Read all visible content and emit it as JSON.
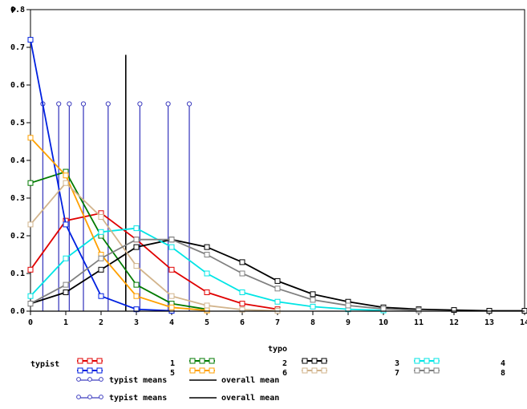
{
  "chart_data": {
    "type": "line",
    "xlabel": "typo",
    "ylabel": "P",
    "xlim": [
      0,
      14
    ],
    "ylim": [
      0,
      0.8
    ],
    "x_ticks": [
      "0",
      "1",
      "2",
      "3",
      "4",
      "5",
      "6",
      "7",
      "8",
      "9",
      "10",
      "11",
      "12",
      "13",
      "14"
    ],
    "y_ticks": [
      "0.0",
      "0.1",
      "0.2",
      "0.3",
      "0.4",
      "0.5",
      "0.6",
      "0.7",
      "0.8"
    ],
    "legend_title": "typist",
    "series": [
      {
        "name": "1",
        "color": "#e00000",
        "x": [
          0,
          1,
          2,
          3,
          4,
          5,
          6,
          7
        ],
        "values": [
          0.11,
          0.24,
          0.26,
          0.19,
          0.11,
          0.05,
          0.02,
          0.005
        ]
      },
      {
        "name": "2",
        "color": "#007a00",
        "x": [
          0,
          1,
          2,
          3,
          4,
          5
        ],
        "values": [
          0.34,
          0.37,
          0.2,
          0.07,
          0.02,
          0.005
        ]
      },
      {
        "name": "3",
        "color": "#000000",
        "x": [
          0,
          1,
          2,
          3,
          4,
          5,
          6,
          7,
          8,
          9,
          10,
          11,
          12,
          13,
          14
        ],
        "values": [
          0.02,
          0.05,
          0.11,
          0.17,
          0.19,
          0.17,
          0.13,
          0.08,
          0.045,
          0.025,
          0.01,
          0.005,
          0.003,
          0.001,
          0.001
        ]
      },
      {
        "name": "4",
        "color": "#00e5e5",
        "x": [
          0,
          1,
          2,
          3,
          4,
          5,
          6,
          7,
          8,
          9,
          10
        ],
        "values": [
          0.04,
          0.14,
          0.21,
          0.22,
          0.17,
          0.1,
          0.05,
          0.025,
          0.012,
          0.005,
          0.002
        ]
      },
      {
        "name": "5",
        "color": "#0020e0",
        "x": [
          0,
          1,
          2,
          3,
          4
        ],
        "values": [
          0.72,
          0.23,
          0.04,
          0.005,
          0.001
        ]
      },
      {
        "name": "6",
        "color": "#ffa000",
        "x": [
          0,
          1,
          2,
          3,
          4,
          5
        ],
        "values": [
          0.46,
          0.36,
          0.15,
          0.04,
          0.01,
          0.002
        ]
      },
      {
        "name": "7",
        "color": "#d2b48c",
        "x": [
          0,
          1,
          2,
          3,
          4,
          5,
          6,
          7
        ],
        "values": [
          0.23,
          0.34,
          0.25,
          0.12,
          0.04,
          0.015,
          0.004,
          0.001
        ]
      },
      {
        "name": "8",
        "color": "#808080",
        "x": [
          0,
          1,
          2,
          3,
          4,
          5,
          6,
          7,
          8,
          9,
          10,
          11
        ],
        "values": [
          0.02,
          0.07,
          0.14,
          0.19,
          0.19,
          0.15,
          0.1,
          0.06,
          0.03,
          0.015,
          0.006,
          0.002
        ]
      }
    ],
    "typist_means": {
      "label": "typist means",
      "color": "#4040c0",
      "x": [
        0.35,
        0.8,
        1.1,
        1.5,
        2.2,
        3.1,
        3.9,
        4.5
      ],
      "top": 0.55
    },
    "overall_mean": {
      "label": "overall mean",
      "color": "#000000",
      "x": 2.7,
      "top": 0.68
    }
  }
}
